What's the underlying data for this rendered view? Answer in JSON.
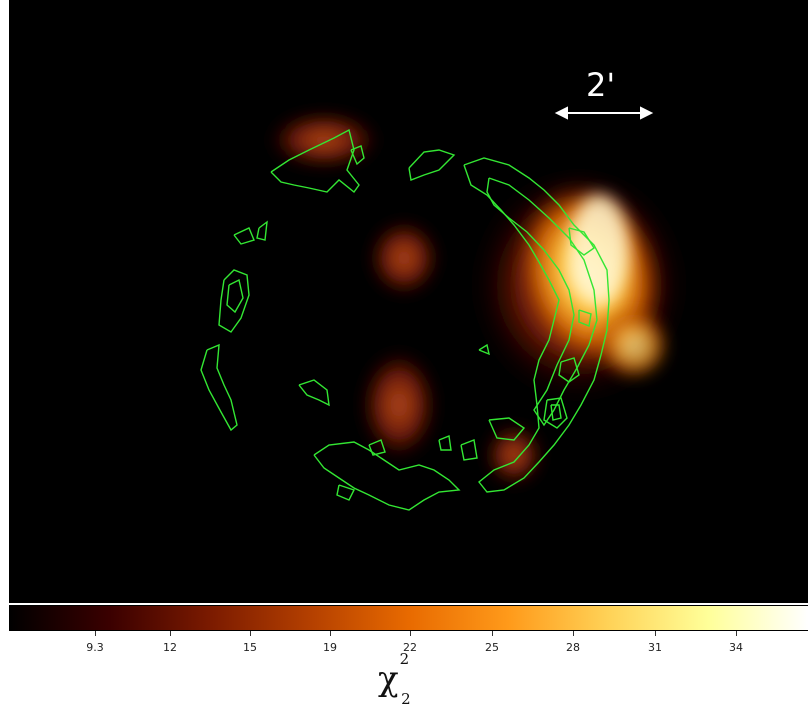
{
  "image": {
    "scale_bar_label": "2'",
    "contour_color": "#33e633",
    "background_color": "#000000"
  },
  "colorbar": {
    "ticks": [
      "9.3",
      "12",
      "15",
      "19",
      "22",
      "25",
      "28",
      "31",
      "34"
    ],
    "label_main": "χ",
    "label_sup": "2",
    "label_sub": "2",
    "colors": [
      "#000000",
      "#3a0000",
      "#7a1a00",
      "#b33f00",
      "#e86a00",
      "#ff9a1a",
      "#ffd257",
      "#ffff99",
      "#ffffff"
    ]
  }
}
